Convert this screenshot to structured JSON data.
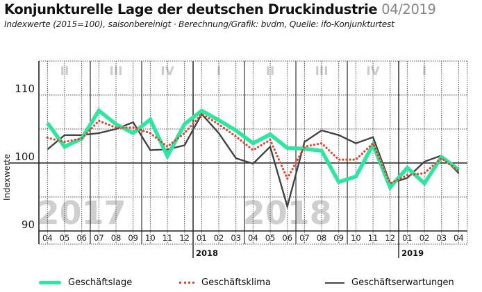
{
  "header": {
    "title": "Konjunkturelle Lage der deutschen Druckindustrie",
    "date": "04/2019",
    "subtitle": "Indexwerte (2015=100), saisonbereinigt · Berechnung/Grafik: bvdm, Quelle: ifo-Konjunkturtest"
  },
  "chart_data": {
    "type": "line",
    "title": "Konjunkturelle Lage der deutschen Druckindustrie 04/2019",
    "ylabel": "Indexwerte",
    "xlabel": "",
    "ylim": [
      90,
      115
    ],
    "yticks": [
      "110",
      "100",
      "90"
    ],
    "ytick_values": [
      110,
      100,
      90
    ],
    "grid": true,
    "legend_position": "bottom",
    "x": [
      "04",
      "05",
      "06",
      "07",
      "08",
      "09",
      "10",
      "11",
      "12",
      "01",
      "02",
      "03",
      "04",
      "05",
      "06",
      "07",
      "08",
      "09",
      "10",
      "11",
      "12",
      "01",
      "02",
      "03",
      "04"
    ],
    "year_labels": [
      {
        "label": "2018",
        "index": 9
      },
      {
        "label": "2019",
        "index": 21
      }
    ],
    "background_years": [
      {
        "label": "2017",
        "index": 2
      },
      {
        "label": "2018",
        "index": 14
      }
    ],
    "quarters": [
      {
        "label": "II",
        "start": 0,
        "end": 2
      },
      {
        "label": "III",
        "start": 3,
        "end": 5
      },
      {
        "label": "IV",
        "start": 6,
        "end": 8
      },
      {
        "label": "I",
        "start": 9,
        "end": 11
      },
      {
        "label": "II",
        "start": 12,
        "end": 14
      },
      {
        "label": "III",
        "start": 15,
        "end": 17
      },
      {
        "label": "IV",
        "start": 18,
        "end": 20
      },
      {
        "label": "I",
        "start": 21,
        "end": 24
      }
    ],
    "series": [
      {
        "name": "Geschäftslage",
        "color": "#2ee6a0",
        "style": "solid-thick",
        "values": [
          105.9,
          102.4,
          103.6,
          107.7,
          105.7,
          104.4,
          106.4,
          101.0,
          105.7,
          107.7,
          106.3,
          104.8,
          102.9,
          104.2,
          102.2,
          102.1,
          101.8,
          97.2,
          98.0,
          102.7,
          96.4,
          99.3,
          97.0,
          100.9,
          99.0
        ]
      },
      {
        "name": "Geschäftsklima",
        "color": "#e0442c",
        "style": "dotted",
        "values": [
          103.7,
          103.1,
          103.6,
          106.2,
          105.2,
          105.2,
          104.4,
          102.4,
          104.4,
          107.2,
          105.7,
          103.9,
          101.9,
          103.4,
          97.7,
          102.4,
          102.9,
          100.5,
          100.5,
          102.9,
          97.0,
          98.2,
          98.5,
          100.7,
          98.8
        ]
      },
      {
        "name": "Geschäftserwartungen",
        "color": "#444444",
        "style": "solid",
        "values": [
          102.0,
          104.1,
          104.1,
          104.4,
          105.0,
          106.0,
          101.9,
          102.0,
          102.6,
          107.2,
          104.4,
          100.7,
          99.9,
          102.4,
          93.6,
          103.1,
          104.8,
          104.1,
          102.9,
          103.8,
          97.0,
          97.8,
          100.2,
          101.1,
          98.5
        ]
      }
    ]
  }
}
